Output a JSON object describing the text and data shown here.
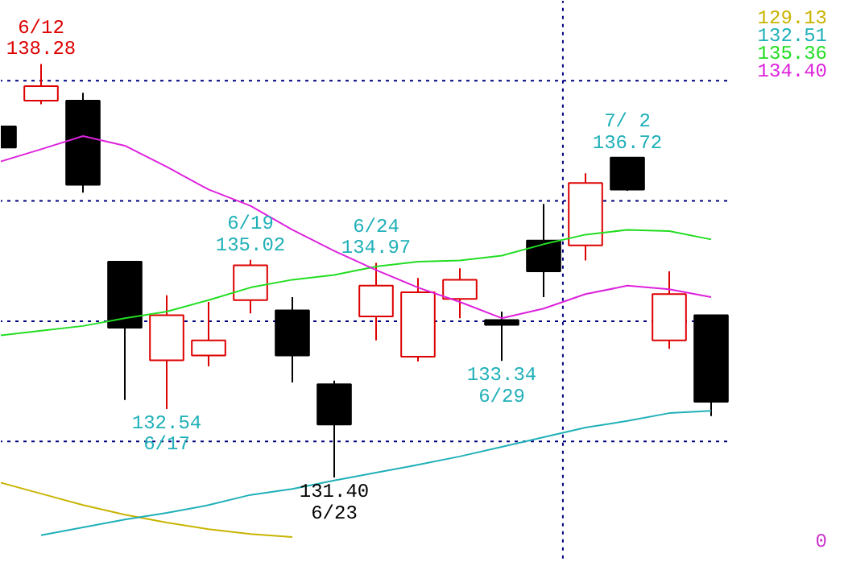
{
  "chart_data": {
    "type": "candlestick",
    "categories": [
      null,
      null,
      null,
      null,
      null,
      null,
      null,
      null,
      null,
      null,
      null,
      null,
      null,
      null,
      null,
      null,
      null,
      null
    ],
    "ohlc": [
      [
        137.24,
        137.24,
        136.89,
        136.89
      ],
      [
        137.67,
        138.28,
        137.61,
        137.91
      ],
      [
        137.67,
        137.8,
        136.14,
        136.27
      ],
      [
        134.99,
        134.99,
        132.69,
        133.89
      ],
      [
        133.35,
        134.43,
        132.54,
        134.1
      ],
      [
        133.43,
        134.32,
        133.25,
        133.68
      ],
      [
        134.35,
        135.02,
        134.13,
        134.93
      ],
      [
        134.18,
        134.4,
        132.98,
        133.43
      ],
      [
        132.95,
        133.01,
        131.4,
        132.28
      ],
      [
        134.08,
        134.97,
        133.68,
        134.59
      ],
      [
        133.41,
        134.72,
        133.33,
        134.48
      ],
      [
        134.37,
        134.88,
        134.05,
        134.69
      ],
      [
        134.02,
        134.16,
        133.34,
        133.94
      ],
      [
        135.34,
        135.95,
        134.4,
        134.83
      ],
      [
        135.26,
        136.46,
        135.01,
        136.3
      ],
      [
        136.72,
        136.72,
        136.17,
        136.19
      ],
      [
        133.68,
        134.83,
        133.54,
        134.45
      ],
      [
        134.1,
        134.1,
        132.42,
        132.66
      ]
    ],
    "colors": [
      "#000000",
      "#dd0000",
      "#000000",
      "#000000",
      "#dd0000",
      "#dd0000",
      "#dd0000",
      "#000000",
      "#000000",
      "#dd0000",
      "#dd0000",
      "#dd0000",
      "#000000",
      "#000000",
      "#dd0000",
      "#000000",
      "#dd0000",
      "#000000"
    ],
    "series": [
      {
        "type": "line",
        "name": "129.13",
        "color": "#c8b400",
        "values": [
          131.32,
          131.13,
          130.94,
          130.78,
          130.65,
          130.54,
          130.46,
          130.41,
          null,
          null,
          null,
          null,
          null,
          null,
          null,
          null,
          null,
          null
        ]
      },
      {
        "type": "line",
        "name": "132.51",
        "color": "#20b0b8",
        "values": [
          null,
          130.44,
          130.57,
          130.7,
          130.81,
          130.94,
          131.11,
          131.21,
          131.35,
          131.48,
          131.61,
          131.75,
          131.91,
          132.07,
          132.23,
          132.34,
          132.47,
          132.51
        ]
      },
      {
        "type": "line",
        "name": "135.36",
        "color": "#22dd22",
        "values": [
          133.76,
          133.84,
          133.92,
          134.05,
          134.16,
          134.35,
          134.56,
          134.69,
          134.77,
          134.91,
          134.99,
          135.01,
          135.09,
          135.28,
          135.44,
          135.52,
          135.5,
          135.36
        ]
      },
      {
        "type": "line",
        "name": "134.40",
        "color": "#dd22dd",
        "values": [
          136.65,
          136.86,
          137.08,
          136.92,
          136.57,
          136.19,
          135.92,
          135.52,
          135.17,
          134.85,
          134.56,
          134.32,
          134.05,
          134.21,
          134.45,
          134.59,
          134.53,
          134.4
        ]
      }
    ],
    "ylim": [
      129.98,
      139.33
    ],
    "yticks": [
      {
        "value": 132,
        "label": null
      },
      {
        "value": 134,
        "label": null
      },
      {
        "value": 136,
        "label": null
      },
      {
        "value": 138,
        "label": null
      }
    ],
    "grid": "y",
    "legend": "top right",
    "tick_labels": false,
    "annotations": [
      {
        "text": "6/12\n138.28",
        "y": 138.28
      },
      {
        "text": "132.54\n6/17",
        "y": 132.54
      },
      {
        "text": "6/19\n135.02",
        "y": 135.02
      },
      {
        "text": "131.40\n6/23",
        "y": 131.4
      },
      {
        "text": "6/24\n134.97",
        "y": 134.97
      },
      {
        "text": "133.34\n6/29",
        "y": 133.34
      },
      {
        "text": "7/ 2\n136.72",
        "y": 136.72
      },
      "0"
    ]
  }
}
